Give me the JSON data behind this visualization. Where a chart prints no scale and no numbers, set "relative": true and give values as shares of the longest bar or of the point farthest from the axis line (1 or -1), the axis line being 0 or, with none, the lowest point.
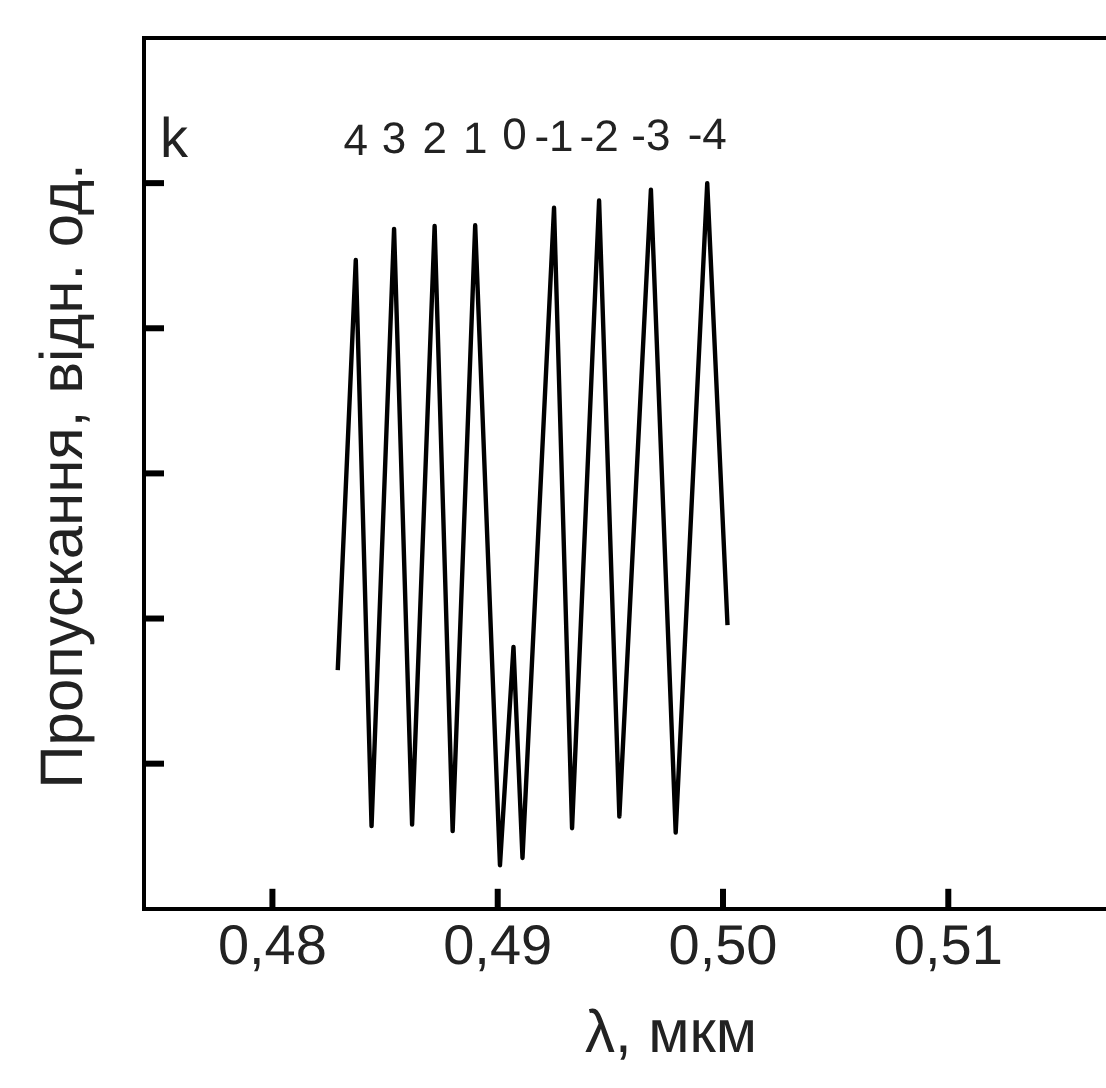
{
  "chart_data": {
    "type": "line",
    "relative": true,
    "xlabel": "λ, мкм",
    "ylabel": "Пропускання, відн. од.",
    "xlim": [
      0.4743,
      0.517
    ],
    "xticks": [
      {
        "value": 0.48,
        "label": "0,48"
      },
      {
        "value": 0.49,
        "label": "0,49"
      },
      {
        "value": 0.5,
        "label": "0,50"
      },
      {
        "value": 0.51,
        "label": "0,51"
      }
    ],
    "tick_labels": "x",
    "grid": false,
    "legend": false,
    "marker": "none",
    "line_style": "solid",
    "series": [
      {
        "color": "#000000",
        "x": [
          0.4829,
          0.4837,
          0.4844,
          0.4854,
          0.4862,
          0.4872,
          0.488,
          0.489,
          0.4901,
          0.4907,
          0.4911,
          0.4925,
          0.4933,
          0.4945,
          0.4954,
          0.4968,
          0.4979,
          0.4993,
          0.5002
        ],
        "values": [
          0.329,
          0.894,
          0.114,
          0.937,
          0.116,
          0.941,
          0.107,
          0.942,
          0.06,
          0.361,
          0.07,
          0.966,
          0.111,
          0.976,
          0.127,
          0.991,
          0.105,
          1,
          0.391
        ]
      }
    ],
    "annotations": [
      "k",
      {
        "text": "4",
        "x": 0.4837,
        "y": 0.894
      },
      {
        "text": "3",
        "x": 0.4854,
        "y": 0.937
      },
      {
        "text": "2",
        "x": 0.4872,
        "y": 0.941
      },
      {
        "text": "1",
        "x": 0.489,
        "y": 0.942
      },
      "0",
      {
        "text": "-1",
        "x": 0.4925,
        "y": 0.966
      },
      {
        "text": "-2",
        "x": 0.4945,
        "y": 0.976
      },
      {
        "text": "-3",
        "x": 0.4968,
        "y": 0.991
      },
      {
        "text": "-4",
        "x": 0.4993,
        "y": 1
      }
    ]
  }
}
